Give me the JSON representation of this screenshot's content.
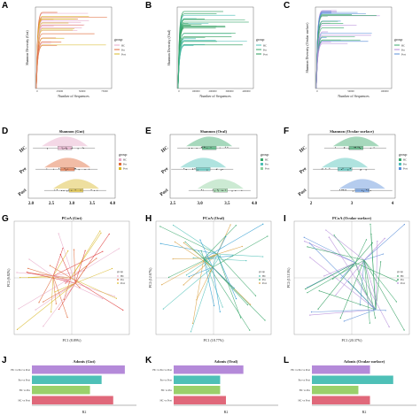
{
  "labels": {
    "A": "A",
    "B": "B",
    "C": "C",
    "D": "D",
    "E": "E",
    "F": "F",
    "G": "G",
    "H": "H",
    "I": "I",
    "J": "J",
    "K": "K",
    "L": "L"
  },
  "colors": {
    "HC": "#e7a8c8",
    "Pre": "#e06a3a",
    "Post": "#d9b92a",
    "teal": "#4ec0b7",
    "green": "#3aa86b",
    "purple": "#b48ad9",
    "blue": "#5b8fd9"
  },
  "rarefaction": [
    {
      "ylabel": "Shannon Diversity (Gut)",
      "xlabel": "Number of Sequences",
      "legend_title": "group",
      "groups": [
        "HC",
        "Pre",
        "Post"
      ],
      "xticks": [
        "0",
        "25000",
        "50000",
        "75000"
      ],
      "colors": [
        "#e7a8c8",
        "#e06a3a",
        "#d9b92a"
      ]
    },
    {
      "ylabel": "Shannon Diversity (Oral)",
      "xlabel": "Number of Sequences",
      "legend_title": "group",
      "groups": [
        "HC",
        "Pre",
        "Post"
      ],
      "xticks": [
        "0",
        "100000",
        "200000",
        "300000",
        "400000"
      ],
      "colors": [
        "#4ec0b7",
        "#3aa86b",
        "#2a9b5a"
      ]
    },
    {
      "ylabel": "Shannon Diversity (Ocular surface)",
      "xlabel": "Number of Sequences",
      "legend_title": "group",
      "groups": [
        "HC",
        "Pre",
        "Post"
      ],
      "xticks": [
        "0",
        "50000",
        "100000"
      ],
      "colors": [
        "#3aa86b",
        "#b48ad9",
        "#5b8fd9"
      ]
    }
  ],
  "violins": [
    {
      "title": "Shannon (Gut)",
      "legend_title": "group",
      "groups": [
        "HC",
        "Pre",
        "Post"
      ],
      "xticks": [
        "2.0",
        "2.5",
        "3.0",
        "3.5",
        "4.0"
      ],
      "colors": [
        "#e7a8c8",
        "#e06a3a",
        "#d9b92a"
      ]
    },
    {
      "title": "Shannon (Oral)",
      "legend_title": "group",
      "groups": [
        "HC",
        "Pre",
        "Post"
      ],
      "xticks": [
        "2.5",
        "3.0",
        "3.5",
        "4.0"
      ],
      "colors": [
        "#3aa86b",
        "#4ec0b7",
        "#8fd19e"
      ]
    },
    {
      "title": "Shannon (Ocular surface)",
      "legend_title": "group",
      "groups": [
        "HC",
        "Pre",
        "Post"
      ],
      "xticks": [
        "2",
        "3",
        "4"
      ],
      "colors": [
        "#3aa86b",
        "#4ec0b7",
        "#5b8fd9"
      ]
    }
  ],
  "pcoa": [
    {
      "title": "PCoA (Gut)",
      "xlabel": "PC1 (8.89%)",
      "ylabel": "PC2 (6.82%)",
      "legend_title": "group",
      "groups": [
        "HC",
        "Pre",
        "Post"
      ]
    },
    {
      "title": "PCoA (Oral)",
      "xlabel": "PC1 (18.77%)",
      "ylabel": "PC2 (12.67%)",
      "legend_title": "group",
      "groups": [
        "HC",
        "Pre",
        "Post"
      ]
    },
    {
      "title": "PCoA (Ocular surface)",
      "xlabel": "PC1 (20.37%)",
      "ylabel": "PC2 (13.15%)",
      "legend_title": "group",
      "groups": [
        "HC",
        "Pre",
        "Post"
      ]
    }
  ],
  "adonis": [
    {
      "title": "Adonis (Gut)",
      "xlabel": "R2",
      "rows": [
        "HC vs Post",
        "HC vs Pre",
        "Pre vs Post",
        "HC vs Pre vs Post"
      ]
    },
    {
      "title": "Adonis (Oral)",
      "xlabel": "R2",
      "rows": [
        "HC vs Post",
        "HC vs Pre",
        "Pre vs Post",
        "HC vs Pre vs Post"
      ]
    },
    {
      "title": "Adonis (Ocular surface)",
      "xlabel": "R2",
      "rows": [
        "HC vs Post",
        "HC vs Pre",
        "Pre vs Post",
        "HC vs Pre vs Post"
      ]
    }
  ],
  "chart_data": [
    {
      "type": "line",
      "title": "",
      "ylabel": "Shannon Diversity (Gut)",
      "xlabel": "Number of Sequences",
      "series": [
        {
          "name": "HC",
          "values": []
        },
        {
          "name": "Pre",
          "values": []
        },
        {
          "name": "Post",
          "values": []
        }
      ]
    },
    {
      "type": "line",
      "title": "",
      "ylabel": "Shannon Diversity (Oral)",
      "xlabel": "Number of Sequences",
      "series": [
        {
          "name": "HC",
          "values": []
        },
        {
          "name": "Pre",
          "values": []
        },
        {
          "name": "Post",
          "values": []
        }
      ]
    },
    {
      "type": "line",
      "title": "",
      "ylabel": "Shannon Diversity (Ocular surface)",
      "xlabel": "Number of Sequences",
      "series": [
        {
          "name": "HC",
          "values": []
        },
        {
          "name": "Pre",
          "values": []
        },
        {
          "name": "Post",
          "values": []
        }
      ]
    },
    {
      "type": "bar",
      "title": "Adonis (Gut)",
      "categories": [
        "HC vs Post",
        "HC vs Pre",
        "Pre vs Post",
        "HC vs Pre vs Post"
      ],
      "values": [
        0.07,
        0.05,
        0.06,
        0.08
      ]
    },
    {
      "type": "bar",
      "title": "Adonis (Oral)",
      "categories": [
        "HC vs Post",
        "HC vs Pre",
        "Pre vs Post",
        "HC vs Pre vs Post"
      ],
      "values": [
        0.045,
        0.04,
        0.04,
        0.06
      ]
    },
    {
      "type": "bar",
      "title": "Adonis (Ocular surface)",
      "categories": [
        "HC vs Post",
        "HC vs Pre",
        "Pre vs Post",
        "HC vs Pre vs Post"
      ],
      "values": [
        0.05,
        0.04,
        0.07,
        0.05
      ]
    }
  ]
}
